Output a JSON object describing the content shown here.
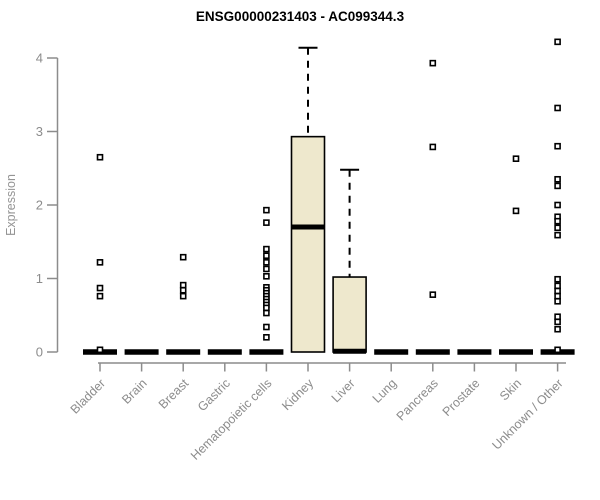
{
  "chart_data": {
    "type": "boxplot",
    "title": "ENSG00000231403 - AC099344.3",
    "ylabel": "Expression",
    "xlabel": "",
    "ylim": [
      0,
      4.3
    ],
    "yticks": [
      0,
      1,
      2,
      3,
      4
    ],
    "grid": false,
    "legend": false,
    "box_fill": "#EEE8CD",
    "box_stroke": "#000000",
    "median_color": "#000000",
    "outlier_marker": "open-square",
    "axis_color": "#8C8C8C",
    "title_color": "#000000",
    "categories": [
      "Bladder",
      "Brain",
      "Breast",
      "Gastric",
      "Hematopoietic cells",
      "Kidney",
      "Liver",
      "Lung",
      "Pancreas",
      "Prostate",
      "Skin",
      "Unknown / Other"
    ],
    "boxes": [
      {
        "category": "Bladder",
        "q1": 0,
        "median": 0,
        "q3": 0,
        "whisker_low": 0,
        "whisker_high": 0,
        "outliers": [
          2.65,
          1.22,
          0.87,
          0.76,
          0.03
        ]
      },
      {
        "category": "Brain",
        "q1": 0,
        "median": 0,
        "q3": 0,
        "whisker_low": 0,
        "whisker_high": 0,
        "outliers": []
      },
      {
        "category": "Breast",
        "q1": 0,
        "median": 0,
        "q3": 0,
        "whisker_low": 0,
        "whisker_high": 0,
        "outliers": [
          1.29,
          0.91,
          0.84,
          0.76
        ]
      },
      {
        "category": "Gastric",
        "q1": 0,
        "median": 0,
        "q3": 0,
        "whisker_low": 0,
        "whisker_high": 0,
        "outliers": []
      },
      {
        "category": "Hematopoietic cells",
        "q1": 0,
        "median": 0,
        "q3": 0,
        "whisker_low": 0,
        "whisker_high": 0,
        "outliers": [
          1.93,
          1.76,
          1.4,
          1.31,
          1.22,
          1.13,
          1.03,
          0.88,
          0.84,
          0.8,
          0.76,
          0.72,
          0.68,
          0.64,
          0.6,
          0.53,
          0.34,
          0.2
        ]
      },
      {
        "category": "Kidney",
        "q1": 0,
        "median": 1.7,
        "q3": 2.93,
        "whisker_low": 0,
        "whisker_high": 4.14,
        "outliers": []
      },
      {
        "category": "Liver",
        "q1": 0,
        "median": 0.01,
        "q3": 1.02,
        "whisker_low": 0,
        "whisker_high": 2.48,
        "outliers": []
      },
      {
        "category": "Lung",
        "q1": 0,
        "median": 0,
        "q3": 0,
        "whisker_low": 0,
        "whisker_high": 0,
        "outliers": []
      },
      {
        "category": "Pancreas",
        "q1": 0,
        "median": 0,
        "q3": 0,
        "whisker_low": 0,
        "whisker_high": 0,
        "outliers": [
          3.93,
          2.79,
          0.78
        ]
      },
      {
        "category": "Prostate",
        "q1": 0,
        "median": 0,
        "q3": 0,
        "whisker_low": 0,
        "whisker_high": 0,
        "outliers": []
      },
      {
        "category": "Skin",
        "q1": 0,
        "median": 0,
        "q3": 0,
        "whisker_low": 0,
        "whisker_high": 0,
        "outliers": [
          2.63,
          1.92
        ]
      },
      {
        "category": "Unknown / Other",
        "q1": 0,
        "median": 0,
        "q3": 0,
        "whisker_low": 0,
        "whisker_high": 0,
        "outliers": [
          4.22,
          3.32,
          2.8,
          2.35,
          2.26,
          2.0,
          1.84,
          1.78,
          1.69,
          1.59,
          0.99,
          0.9,
          0.83,
          0.76,
          0.69,
          0.48,
          0.41,
          0.31,
          0.03
        ]
      }
    ]
  }
}
